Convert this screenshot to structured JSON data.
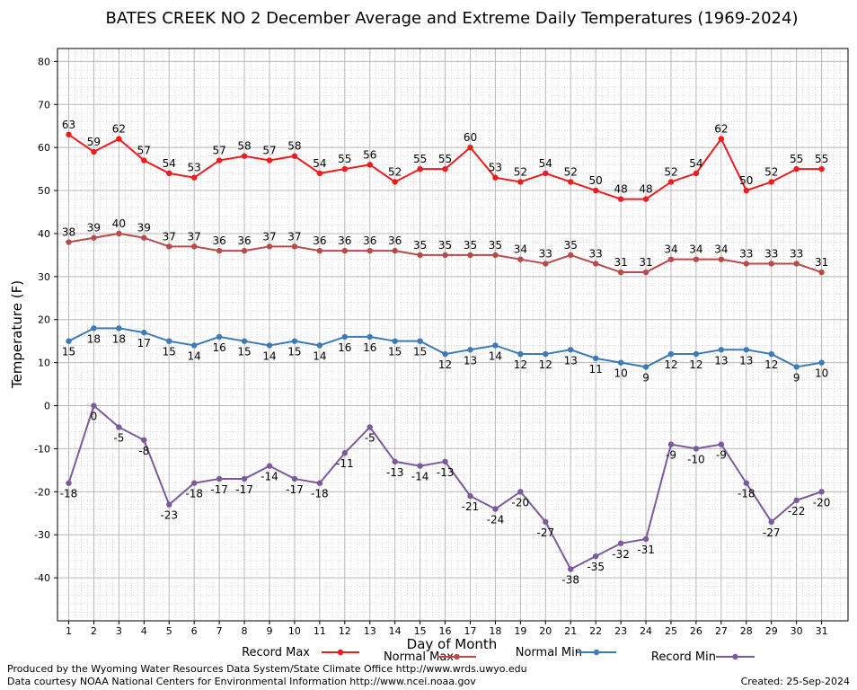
{
  "chart_data": {
    "type": "line",
    "title": "BATES CREEK NO 2 December Average and Extreme Daily Temperatures (1969-2024)",
    "xlabel": "Day of Month",
    "ylabel": "Temperature (F)",
    "ylim": [
      -50,
      83
    ],
    "yticks": [
      80,
      70,
      60,
      50,
      40,
      30,
      20,
      10,
      0,
      -10,
      -20,
      -30,
      -40
    ],
    "grid": true,
    "legend_position": "bottom",
    "x": [
      1,
      2,
      3,
      4,
      5,
      6,
      7,
      8,
      9,
      10,
      11,
      12,
      13,
      14,
      15,
      16,
      17,
      18,
      19,
      20,
      21,
      22,
      23,
      24,
      25,
      26,
      27,
      28,
      29,
      30,
      31
    ],
    "series": [
      {
        "name": "Record Max",
        "color": "#ee1c1c",
        "label_position": "above",
        "values": [
          63,
          59,
          62,
          57,
          54,
          53,
          57,
          58,
          57,
          58,
          54,
          55,
          56,
          52,
          55,
          55,
          60,
          53,
          52,
          54,
          52,
          50,
          48,
          48,
          52,
          54,
          62,
          50,
          52,
          55,
          55
        ]
      },
      {
        "name": "Normal Max",
        "color": "#b84a4a",
        "label_position": "above",
        "values": [
          38,
          39,
          40,
          39,
          37,
          37,
          36,
          36,
          37,
          37,
          36,
          36,
          36,
          36,
          35,
          35,
          35,
          35,
          34,
          33,
          35,
          33,
          31,
          31,
          34,
          34,
          34,
          33,
          33,
          33,
          31
        ]
      },
      {
        "name": "Normal Min",
        "color": "#3d7ab8",
        "label_position": "below",
        "values": [
          15,
          18,
          18,
          17,
          15,
          14,
          16,
          15,
          14,
          15,
          14,
          16,
          16,
          15,
          15,
          12,
          13,
          14,
          12,
          12,
          13,
          11,
          10,
          9,
          12,
          12,
          13,
          13,
          12,
          9,
          10
        ]
      },
      {
        "name": "Record Min",
        "color": "#7a5a9c",
        "label_position": "below",
        "values": [
          -18,
          0,
          -5,
          -8,
          -23,
          -18,
          -17,
          -17,
          -14,
          -17,
          -18,
          -11,
          -5,
          -13,
          -14,
          -13,
          -21,
          -24,
          -20,
          -27,
          -38,
          -35,
          -32,
          -31,
          -9,
          -10,
          -9,
          -18,
          -27,
          -22,
          -20
        ]
      }
    ]
  },
  "footer": {
    "produced_by": "Produced by the Wyoming Water Resources Data System/State Climate Office http://www.wrds.uwyo.edu",
    "courtesy": "Data courtesy NOAA National Centers for Environmental Information http://www.ncei.noaa.gov",
    "created": "Created:  25-Sep-2024"
  }
}
